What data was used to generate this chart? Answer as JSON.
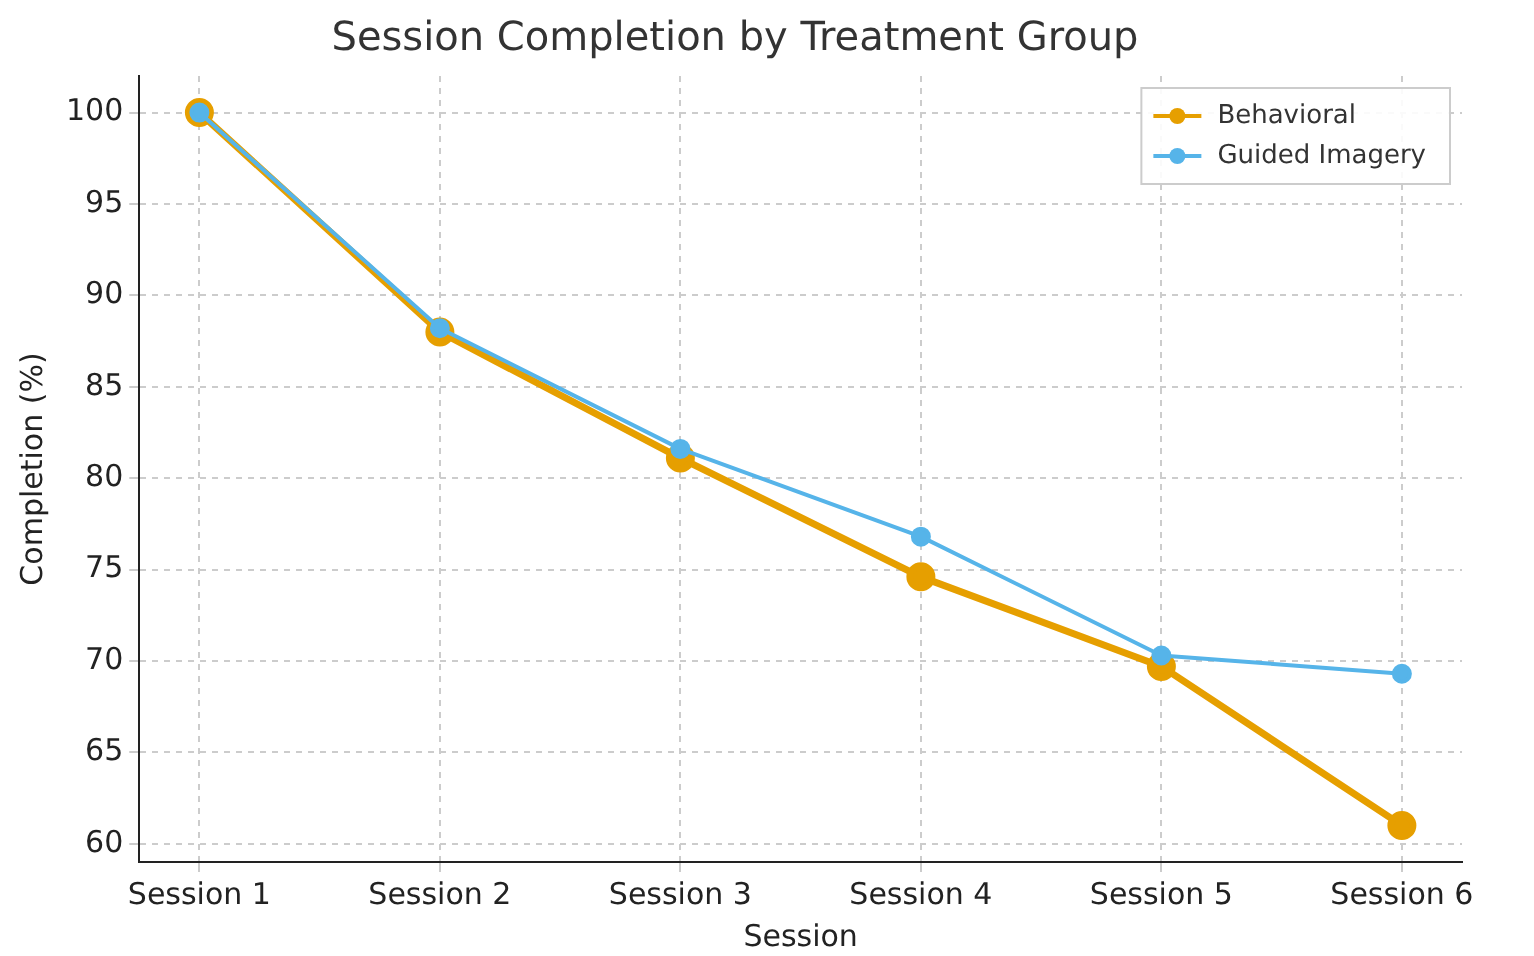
{
  "chart_data": {
    "type": "line",
    "title": "Session Completion by Treatment Group",
    "xlabel": "Session",
    "ylabel": "Completion (%)",
    "categories": [
      "Session 1",
      "Session 2",
      "Session 3",
      "Session 4",
      "Session 5",
      "Session 6"
    ],
    "series": [
      {
        "name": "Behavioral",
        "color": "#e69f00",
        "values": [
          100,
          88,
          81.1,
          74.6,
          69.7,
          61
        ]
      },
      {
        "name": "Guided Imagery",
        "color": "#56b4e9",
        "values": [
          100,
          88.2,
          81.6,
          76.8,
          70.3,
          69.3
        ]
      }
    ],
    "ylim": [
      59,
      102
    ],
    "yticks": [
      60,
      65,
      70,
      75,
      80,
      85,
      90,
      95,
      100
    ],
    "grid": true,
    "legend": "top right",
    "marker": "circle",
    "line_style": "solid"
  }
}
